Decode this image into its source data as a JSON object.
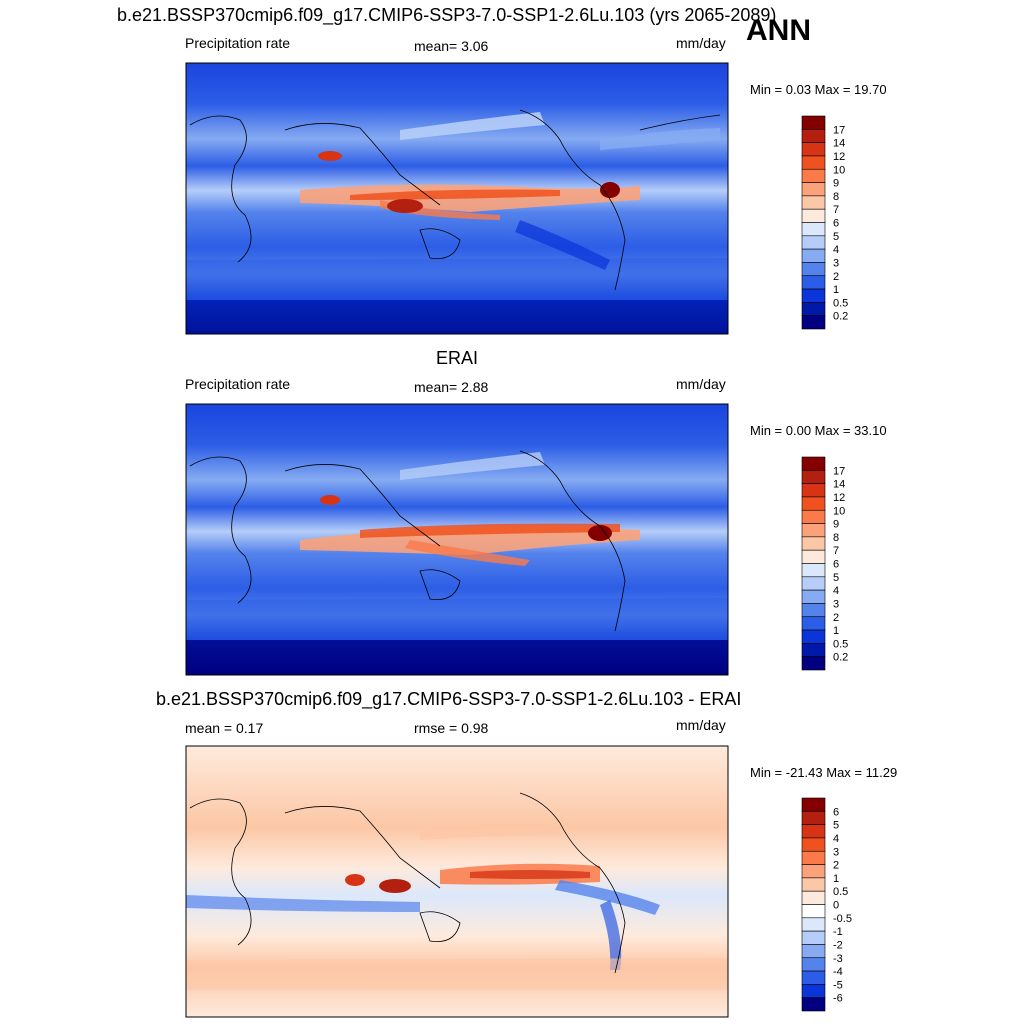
{
  "season_label": "ANN",
  "panels": [
    {
      "title": "b.e21.BSSP370cmip6.f09_g17.CMIP6-SSP3-7.0-SSP1-2.6Lu.103 (yrs 2065-2089)",
      "left_label": "Precipitation rate",
      "mid_label": "mean=   3.06",
      "units": "mm/day",
      "minmax": "Min =   0.03 Max =  19.70"
    },
    {
      "title": "ERAI",
      "left_label": "Precipitation rate",
      "mid_label": "mean=   2.88",
      "units": "mm/day",
      "minmax": "Min =   0.00 Max =  33.10"
    },
    {
      "title": "b.e21.BSSP370cmip6.f09_g17.CMIP6-SSP3-7.0-SSP1-2.6Lu.103 - ERAI",
      "left_label": "mean =   0.17",
      "mid_label": "rmse =   0.98",
      "units": "mm/day",
      "minmax": "Min = -21.43 Max =  11.29"
    }
  ],
  "chart_data": [
    {
      "type": "heatmap",
      "variable": "Precipitation rate",
      "units": "mm/day",
      "mean": 3.06,
      "min": 0.03,
      "max": 19.7,
      "colorbar_levels": [
        "17",
        "14",
        "12",
        "10",
        "9",
        "8",
        "7",
        "6",
        "5",
        "4",
        "3",
        "2",
        "1",
        "0.5",
        "0.2"
      ],
      "colorbar_colors": [
        "#840000",
        "#b3200f",
        "#d63415",
        "#f0521f",
        "#fa7a4a",
        "#fba27a",
        "#fcc7a6",
        "#feeadc",
        "#dbe8fb",
        "#b5cdf8",
        "#86abf2",
        "#5583ec",
        "#2c5de6",
        "#0a35d8",
        "#0019a8",
        "#000080"
      ]
    },
    {
      "type": "heatmap",
      "variable": "Precipitation rate",
      "units": "mm/day",
      "mean": 2.88,
      "min": 0.0,
      "max": 33.1,
      "colorbar_levels": [
        "17",
        "14",
        "12",
        "10",
        "9",
        "8",
        "7",
        "6",
        "5",
        "4",
        "3",
        "2",
        "1",
        "0.5",
        "0.2"
      ],
      "colorbar_colors": [
        "#840000",
        "#b3200f",
        "#d63415",
        "#f0521f",
        "#fa7a4a",
        "#fba27a",
        "#fcc7a6",
        "#feeadc",
        "#dbe8fb",
        "#b5cdf8",
        "#86abf2",
        "#5583ec",
        "#2c5de6",
        "#0a35d8",
        "#0019a8",
        "#000080"
      ]
    },
    {
      "type": "heatmap",
      "variable": "difference",
      "units": "mm/day",
      "mean": 0.17,
      "rmse": 0.98,
      "min": -21.43,
      "max": 11.29,
      "colorbar_levels": [
        "6",
        "5",
        "4",
        "3",
        "2",
        "1",
        "0.5",
        "0",
        "-0.5",
        "-1",
        "-2",
        "-3",
        "-4",
        "-5",
        "-6"
      ],
      "colorbar_colors": [
        "#840000",
        "#b3200f",
        "#d63415",
        "#f0521f",
        "#fa7a4a",
        "#fba27a",
        "#fcc7a6",
        "#feeadc",
        "#ffffff",
        "#dbe8fb",
        "#b5cdf8",
        "#86abf2",
        "#5583ec",
        "#2c5de6",
        "#0a35d8",
        "#000080"
      ]
    }
  ]
}
